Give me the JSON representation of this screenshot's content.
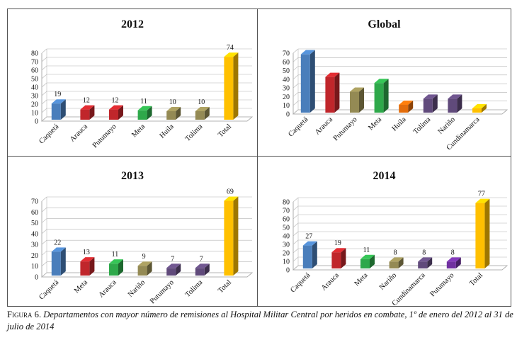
{
  "caption": {
    "label": "Figura 6.",
    "text": "Departamentos con mayor número de remisiones al Hospital Militar Central por heridos en combate, 1º de enero del 2012 al 31 de julio de 2014"
  },
  "chart_data": [
    {
      "type": "bar",
      "title": "2012",
      "categories": [
        "Caquetá",
        "Arauca",
        "Putumayo",
        "Meta",
        "Huila",
        "Tolima",
        "Total"
      ],
      "values": [
        19,
        12,
        12,
        11,
        10,
        10,
        74
      ],
      "colors": [
        "#4a7ebb",
        "#c0262b",
        "#c0262b",
        "#2ea84a",
        "#948a54",
        "#948a54",
        "#ffc000"
      ],
      "data_labels": true,
      "ylim": [
        0,
        80
      ],
      "yticks": [
        0,
        10,
        20,
        30,
        40,
        50,
        60,
        70,
        80
      ],
      "grid": true
    },
    {
      "type": "bar",
      "title": "Global",
      "categories": [
        "Caquetá",
        "Arauca",
        "Putumayo",
        "Meta",
        "Huila",
        "Tolima",
        "Nariño",
        "Cundinamarca"
      ],
      "values": [
        67,
        41,
        24,
        34,
        9,
        16,
        16,
        5
      ],
      "colors": [
        "#4a7ebb",
        "#c0262b",
        "#948a54",
        "#2ea84a",
        "#e36c0a",
        "#604a7b",
        "#604a7b",
        "#ffc000"
      ],
      "data_labels": false,
      "ylim": [
        0,
        70
      ],
      "yticks": [
        0,
        10,
        20,
        30,
        40,
        50,
        60,
        70
      ],
      "grid": true
    },
    {
      "type": "bar",
      "title": "2013",
      "categories": [
        "Caquetá",
        "Meta",
        "Arauca",
        "Nariño",
        "Putumayo",
        "Tolima",
        "Total"
      ],
      "values": [
        22,
        13,
        11,
        9,
        7,
        7,
        69
      ],
      "colors": [
        "#4a7ebb",
        "#c0262b",
        "#2ea84a",
        "#948a54",
        "#604a7b",
        "#604a7b",
        "#ffc000"
      ],
      "data_labels": true,
      "ylim": [
        0,
        70
      ],
      "yticks": [
        0,
        10,
        20,
        30,
        40,
        50,
        60,
        70
      ],
      "grid": true
    },
    {
      "type": "bar",
      "title": "2014",
      "categories": [
        "Caquetá",
        "Arauca",
        "Meta",
        "Nariño",
        "Cundinamarca",
        "Putumayo",
        "Total"
      ],
      "values": [
        27,
        19,
        11,
        8,
        8,
        8,
        77
      ],
      "colors": [
        "#4a7ebb",
        "#c0262b",
        "#2ea84a",
        "#948a54",
        "#604a7b",
        "#7030a0",
        "#ffc000"
      ],
      "data_labels": true,
      "ylim": [
        0,
        80
      ],
      "yticks": [
        0,
        10,
        20,
        30,
        40,
        50,
        60,
        70,
        80
      ],
      "grid": true
    }
  ]
}
